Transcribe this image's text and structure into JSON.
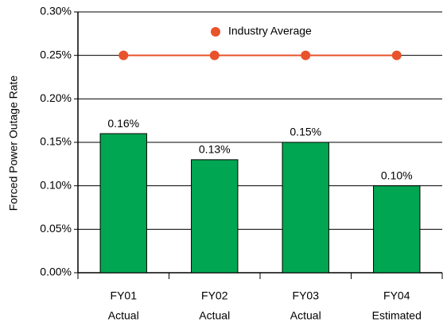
{
  "chart_data": {
    "type": "bar",
    "ylabel": "Forced Power Outage Rate",
    "categories": [
      [
        "FY01",
        "Actual"
      ],
      [
        "FY02",
        "Actual"
      ],
      [
        "FY03",
        "Actual"
      ],
      [
        "FY04",
        "Estimated"
      ]
    ],
    "series": [
      {
        "type": "bar",
        "color": "#00a651",
        "values": [
          0.16,
          0.13,
          0.15,
          0.1
        ],
        "value_labels": [
          "0.16%",
          "0.13%",
          "0.15%",
          "0.10%"
        ]
      },
      {
        "type": "line",
        "name": "Industry Average",
        "color": "#e8532b",
        "values": [
          0.25,
          0.25,
          0.25,
          0.25
        ]
      }
    ],
    "ylim": [
      0,
      0.3
    ],
    "yticks": [
      {
        "value": 0,
        "label": "0.00%"
      },
      {
        "value": 0.05,
        "label": "0.05%"
      },
      {
        "value": 0.1,
        "label": "0.10%"
      },
      {
        "value": 0.15,
        "label": "0.15%"
      },
      {
        "value": 0.2,
        "label": "0.20%"
      },
      {
        "value": 0.25,
        "label": "0.25%"
      },
      {
        "value": 0.3,
        "label": "0.30%"
      }
    ],
    "grid": true,
    "legend": "top"
  }
}
